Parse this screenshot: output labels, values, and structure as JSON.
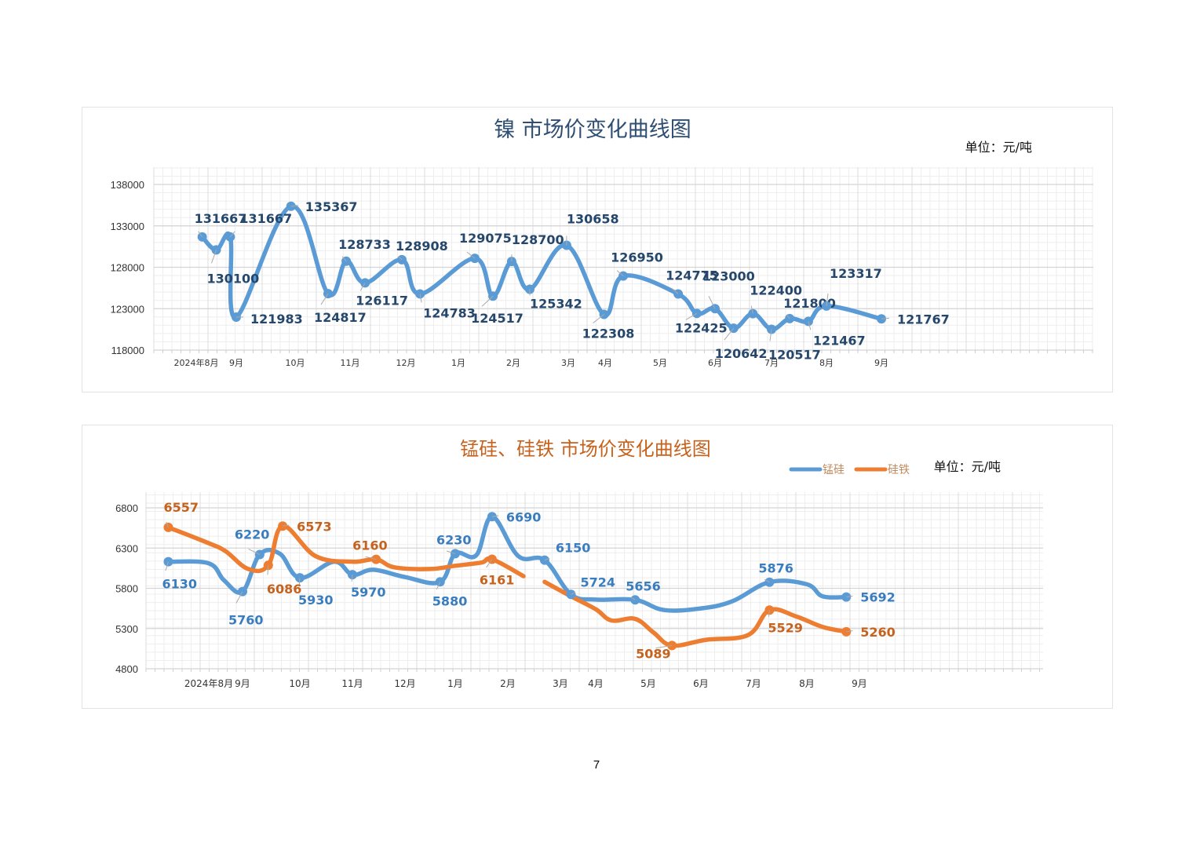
{
  "page_number": "7",
  "colors": {
    "nickel_line": "#5b9bd5",
    "nickel_title": "#2e4e73",
    "nickel_label": "#24476b",
    "mnsi_line": "#5b9bd5",
    "mnsi_label": "#3a7dbf",
    "fesi_line": "#ed7d31",
    "fesi_label": "#c5621d",
    "title2": "#c5621d"
  },
  "chart_data": [
    {
      "type": "line",
      "title": "镍 市场价变化曲线图",
      "unit_label": "单位：元/吨",
      "xlabel": "",
      "ylabel": "",
      "ylim": [
        118000,
        138000
      ],
      "yticks": [
        "118000",
        "123000",
        "128000",
        "133000",
        "138000"
      ],
      "ytick_values": [
        118000,
        123000,
        128000,
        133000,
        138000
      ],
      "xtick_labels": [
        "2024年8月",
        "9月",
        "10月",
        "11月",
        "12月",
        "1月",
        "2月",
        "3月",
        "4月",
        "5月",
        "6月",
        "7月",
        "8月",
        "9月"
      ],
      "grid": true,
      "legend": "none",
      "series": [
        {
          "name": "镍",
          "points": [
            {
              "t": 0.15,
              "v": 131667,
              "label": "131667"
            },
            {
              "t": 0.5,
              "v": 130100,
              "label": "130100"
            },
            {
              "t": 0.85,
              "v": 131667,
              "label": "131667"
            },
            {
              "t": 1.0,
              "v": 121983,
              "label": "121983"
            },
            {
              "t": 1.93,
              "v": 135367,
              "label": "135367"
            },
            {
              "t": 2.6,
              "v": 124817,
              "label": "124817"
            },
            {
              "t": 2.93,
              "v": 128733,
              "label": "128733"
            },
            {
              "t": 3.27,
              "v": 126117,
              "label": "126117"
            },
            {
              "t": 3.93,
              "v": 128908,
              "label": "128908"
            },
            {
              "t": 4.27,
              "v": 124783,
              "label": "124783"
            },
            {
              "t": 5.3,
              "v": 129075,
              "label": "129075"
            },
            {
              "t": 5.63,
              "v": 124517,
              "label": "124517"
            },
            {
              "t": 5.97,
              "v": 128700,
              "label": "128700"
            },
            {
              "t": 6.3,
              "v": 125342,
              "label": "125342"
            },
            {
              "t": 6.97,
              "v": 130658,
              "label": "130658"
            },
            {
              "t": 7.97,
              "v": 122308,
              "label": "122308"
            },
            {
              "t": 8.33,
              "v": 126950,
              "label": "126950"
            },
            {
              "t": 9.33,
              "v": 124775,
              "label": "124775"
            },
            {
              "t": 9.67,
              "v": 122425,
              "label": "122425"
            },
            {
              "t": 10.0,
              "v": 123000,
              "label": "123000"
            },
            {
              "t": 10.33,
              "v": 120642,
              "label": "120642"
            },
            {
              "t": 10.67,
              "v": 122400,
              "label": "122400"
            },
            {
              "t": 11.0,
              "v": 120517,
              "label": "120517"
            },
            {
              "t": 11.33,
              "v": 121800,
              "label": "121800"
            },
            {
              "t": 11.67,
              "v": 121467,
              "label": "121467"
            },
            {
              "t": 12.0,
              "v": 123317,
              "label": "123317"
            },
            {
              "t": 13.0,
              "v": 121767,
              "label": "121767"
            }
          ]
        }
      ]
    },
    {
      "type": "line",
      "title": "锰硅、硅铁 市场价变化曲线图",
      "unit_label": "单位：元/吨",
      "xlabel": "",
      "ylabel": "",
      "ylim": [
        4800,
        6800
      ],
      "yticks": [
        "4800",
        "5300",
        "5800",
        "6300",
        "6800"
      ],
      "ytick_values": [
        4800,
        5300,
        5800,
        6300,
        6800
      ],
      "xtick_labels": [
        "2024年8月",
        "9月",
        "10月",
        "11月",
        "12月",
        "1月",
        "2月",
        "3月",
        "4月",
        "5月",
        "6月",
        "7月",
        "8月",
        "9月"
      ],
      "grid": true,
      "legend": "top-right",
      "series": [
        {
          "name": "锰硅",
          "points": [
            {
              "t": -0.5,
              "v": 6130,
              "label": "6130"
            },
            {
              "t": 0.0,
              "v": 6110
            },
            {
              "t": 0.45,
              "v": 5900
            },
            {
              "t": 1.0,
              "v": 5760,
              "label": "5760"
            },
            {
              "t": 1.3,
              "v": 6220,
              "label": "6220"
            },
            {
              "t": 1.65,
              "v": 6230
            },
            {
              "t": 2.0,
              "v": 5930,
              "label": "5930"
            },
            {
              "t": 2.65,
              "v": 6130
            },
            {
              "t": 3.0,
              "v": 5970,
              "label": "5970"
            },
            {
              "t": 3.4,
              "v": 6030
            },
            {
              "t": 4.0,
              "v": 5940
            },
            {
              "t": 4.7,
              "v": 5880,
              "label": "5880"
            },
            {
              "t": 5.0,
              "v": 6230,
              "label": "6230"
            },
            {
              "t": 5.4,
              "v": 6210
            },
            {
              "t": 5.7,
              "v": 6690,
              "label": "6690"
            },
            {
              "t": 6.2,
              "v": 6200
            },
            {
              "t": 6.7,
              "v": 6150,
              "label": "6150"
            },
            {
              "t": 7.3,
              "v": 5724,
              "label": "5724"
            },
            {
              "t": 8.0,
              "v": 5660
            },
            {
              "t": 8.75,
              "v": 5656,
              "label": "5656"
            },
            {
              "t": 9.3,
              "v": 5530
            },
            {
              "t": 10.0,
              "v": 5550
            },
            {
              "t": 10.6,
              "v": 5640
            },
            {
              "t": 11.3,
              "v": 5876,
              "label": "5876"
            },
            {
              "t": 12.0,
              "v": 5850
            },
            {
              "t": 12.3,
              "v": 5700
            },
            {
              "t": 12.75,
              "v": 5692,
              "label": "5692"
            }
          ]
        },
        {
          "name": "硅铁",
          "segments": [
            [
              {
                "t": -0.5,
                "v": 6557,
                "label": "6557"
              },
              {
                "t": 0.0,
                "v": 6360
              },
              {
                "t": 0.5,
                "v": 6260
              },
              {
                "t": 1.1,
                "v": 6040
              },
              {
                "t": 1.45,
                "v": 6086,
                "label": "6086"
              },
              {
                "t": 1.7,
                "v": 6573,
                "label": "6573"
              },
              {
                "t": 2.3,
                "v": 6200
              },
              {
                "t": 3.0,
                "v": 6130
              },
              {
                "t": 3.45,
                "v": 6160,
                "label": "6160"
              },
              {
                "t": 3.8,
                "v": 6060
              },
              {
                "t": 4.5,
                "v": 6040
              },
              {
                "t": 5.0,
                "v": 6080
              },
              {
                "t": 5.5,
                "v": 6120
              },
              {
                "t": 5.7,
                "v": 6161,
                "label": "6161"
              },
              {
                "t": 6.3,
                "v": 5950
              }
            ],
            [
              {
                "t": 6.7,
                "v": 5880
              },
              {
                "t": 7.3,
                "v": 5700
              },
              {
                "t": 8.0,
                "v": 5540
              },
              {
                "t": 8.3,
                "v": 5400
              },
              {
                "t": 8.75,
                "v": 5420
              },
              {
                "t": 9.1,
                "v": 5250
              },
              {
                "t": 9.45,
                "v": 5089,
                "label": "5089"
              },
              {
                "t": 10.1,
                "v": 5160
              },
              {
                "t": 10.9,
                "v": 5220
              },
              {
                "t": 11.3,
                "v": 5529,
                "label": "5529"
              },
              {
                "t": 11.8,
                "v": 5450
              },
              {
                "t": 12.3,
                "v": 5320
              },
              {
                "t": 12.75,
                "v": 5260,
                "label": "5260"
              }
            ]
          ]
        }
      ]
    }
  ]
}
